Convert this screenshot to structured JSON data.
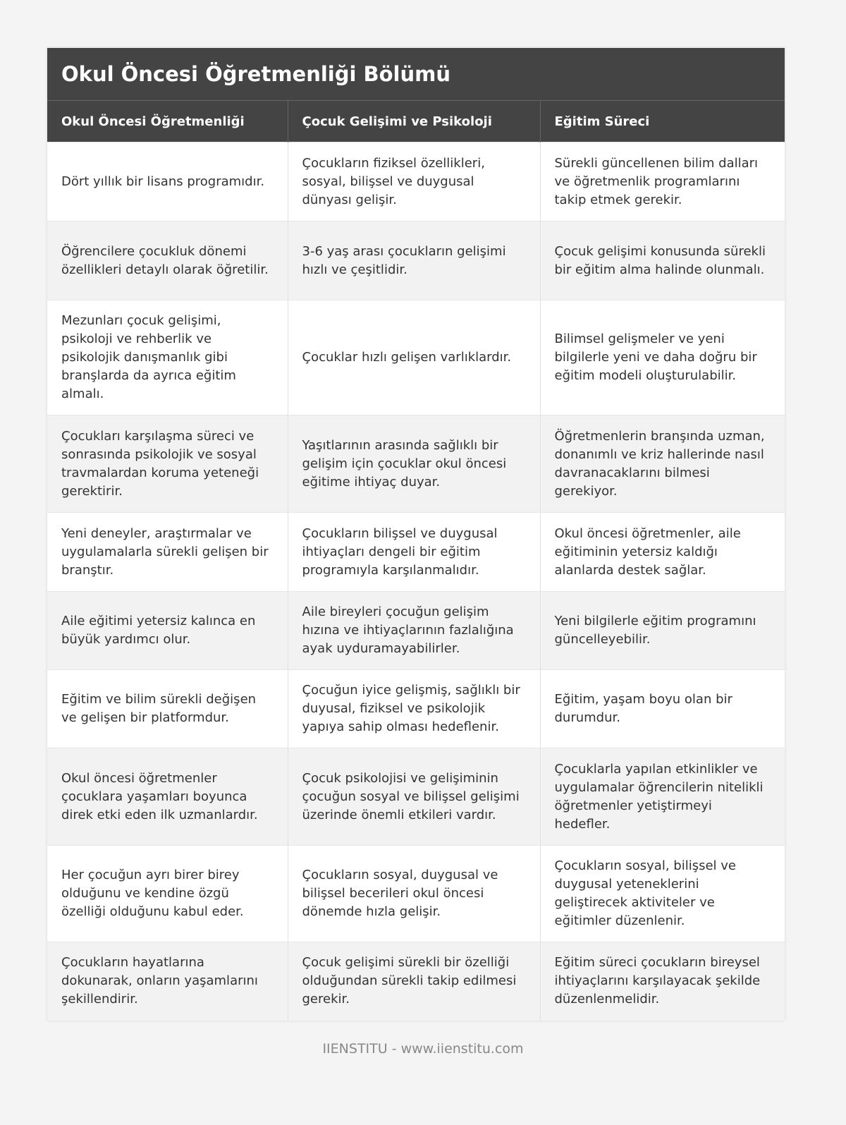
{
  "title": "Okul Öncesi Öğretmenliği Bölümü",
  "columns": [
    "Okul Öncesi Öğretmenliği",
    "Çocuk Gelişimi ve Psikoloji",
    "Eğitim Süreci"
  ],
  "rows": [
    [
      "Dört yıllık bir lisans programıdır.",
      "Çocukların fiziksel özellikleri, sosyal, bilişsel ve duygusal dünyası gelişir.",
      "Sürekli güncellenen bilim dalları ve öğretmenlik programlarını takip etmek gerekir."
    ],
    [
      "Öğrencilere çocukluk dönemi özellikleri detaylı olarak öğretilir.",
      "3-6 yaş arası çocukların gelişimi hızlı ve çeşitlidir.",
      "Çocuk gelişimi konusunda sürekli bir eğitim alma halinde olunmalı."
    ],
    [
      "Mezunları çocuk gelişimi, psikoloji ve rehberlik ve psikolojik danışmanlık gibi branşlarda da ayrıca eğitim almalı.",
      "Çocuklar hızlı gelişen varlıklardır.",
      "Bilimsel gelişmeler ve yeni bilgilerle yeni ve daha doğru bir eğitim modeli oluşturulabilir."
    ],
    [
      "Çocukları karşılaşma süreci ve sonrasında psikolojik ve sosyal travmalardan koruma yeteneği gerektirir.",
      "Yaşıtlarının arasında sağlıklı bir gelişim için çocuklar okul öncesi eğitime ihtiyaç duyar.",
      "Öğretmenlerin branşında uzman, donanımlı ve kriz hallerinde nasıl davranacaklarını bilmesi gerekiyor."
    ],
    [
      "Yeni deneyler, araştırmalar ve uygulamalarla sürekli gelişen bir branştır.",
      "Çocukların bilişsel ve duygusal ihtiyaçları dengeli bir eğitim programıyla karşılanmalıdır.",
      "Okul öncesi öğretmenler, aile eğitiminin yetersiz kaldığı alanlarda destek sağlar."
    ],
    [
      "Aile eğitimi yetersiz kalınca en büyük yardımcı olur.",
      "Aile bireyleri çocuğun gelişim hızına ve ihtiyaçlarının fazlalığına ayak uyduramayabilirler.",
      "Yeni bilgilerle eğitim programını güncelleyebilir."
    ],
    [
      "Eğitim ve bilim sürekli değişen ve gelişen bir platformdur.",
      "Çocuğun iyice gelişmiş, sağlıklı bir duyusal, fiziksel ve psikolojik yapıya sahip olması hedeflenir.",
      "Eğitim, yaşam boyu olan bir durumdur."
    ],
    [
      "Okul öncesi öğretmenler çocuklara yaşamları boyunca direk etki eden ilk uzmanlardır.",
      "Çocuk psikolojisi ve gelişiminin çocuğun sosyal ve bilişsel gelişimi üzerinde önemli etkileri vardır.",
      "Çocuklarla yapılan etkinlikler ve uygulamalar öğrencilerin nitelikli öğretmenler yetiştirmeyi hedefler."
    ],
    [
      "Her çocuğun ayrı birer birey olduğunu ve kendine özgü özelliği olduğunu kabul eder.",
      "Çocukların sosyal, duygusal ve bilişsel becerileri okul öncesi dönemde hızla gelişir.",
      "Çocukların sosyal, bilişsel ve duygusal yeteneklerini geliştirecek aktiviteler ve eğitimler düzenlenir."
    ],
    [
      "Çocukların hayatlarına dokunarak, onların yaşamlarını şekillendirir.",
      "Çocuk gelişimi sürekli bir özelliği olduğundan sürekli takip edilmesi gerekir.",
      "Eğitim süreci çocukların bireysel ihtiyaçlarını karşılayacak şekilde düzenlenmelidir."
    ]
  ],
  "footer": "IIENSTITU - www.iienstitu.com"
}
